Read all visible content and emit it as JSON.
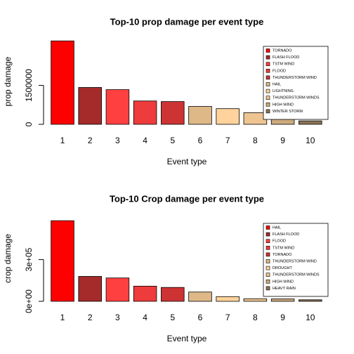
{
  "chart_data": [
    {
      "type": "bar",
      "title": "Top-10 prop damage per event type",
      "x_label": "Event type",
      "y_label": "prop damage",
      "categories": [
        "1",
        "2",
        "3",
        "4",
        "5",
        "6",
        "7",
        "8",
        "9",
        "10"
      ],
      "values": [
        3212258,
        1420125,
        1335966,
        899938,
        876844,
        688693,
        603352,
        446293,
        324732,
        132721
      ],
      "colors": [
        "#ff0000",
        "#a52a2a",
        "#ff4040",
        "#ee3b3b",
        "#cd3333",
        "#deb887",
        "#ffd39b",
        "#eec591",
        "#cdaa7d",
        "#8b7355"
      ],
      "legend": [
        "TORNADO",
        "FLASH FLOOD",
        "TSTM WIND",
        "FLOOD",
        "THUNDERSTORM WIND",
        "HAIL",
        "LIGHTNING",
        "THUNDERSTORM WINDS",
        "HIGH WIND",
        "WINTER STORM"
      ],
      "legend_position": "top-right",
      "ylim": [
        0,
        3300000
      ],
      "yticks": [
        0,
        1500000
      ]
    },
    {
      "type": "bar",
      "title": "Top-10 Crop damage per event type",
      "x_label": "Event type",
      "y_label": "crop damage",
      "categories": [
        "1",
        "2",
        "3",
        "4",
        "5",
        "6",
        "7",
        "8",
        "9",
        "10"
      ],
      "values": [
        579596,
        179200,
        168038,
        109203,
        100019,
        66791,
        33899,
        18685,
        17283,
        11123
      ],
      "colors": [
        "#ff0000",
        "#a52a2a",
        "#ff4040",
        "#ee3b3b",
        "#cd3333",
        "#deb887",
        "#ffd39b",
        "#eec591",
        "#cdaa7d",
        "#8b7355"
      ],
      "legend": [
        "HAIL",
        "FLASH FLOOD",
        "FLOOD",
        "TSTM WIND",
        "TORNADO",
        "THUNDERSTORM WIND",
        "DROUGHT",
        "THUNDERSTORM WINDS",
        "HIGH WIND",
        "HEAVY RAIN"
      ],
      "legend_position": "top-right",
      "ylim": [
        0,
        616000
      ],
      "yticks": [
        {
          "value": 0,
          "label": "0e+00"
        },
        {
          "value": 300000,
          "label": "3e+05"
        }
      ]
    }
  ]
}
